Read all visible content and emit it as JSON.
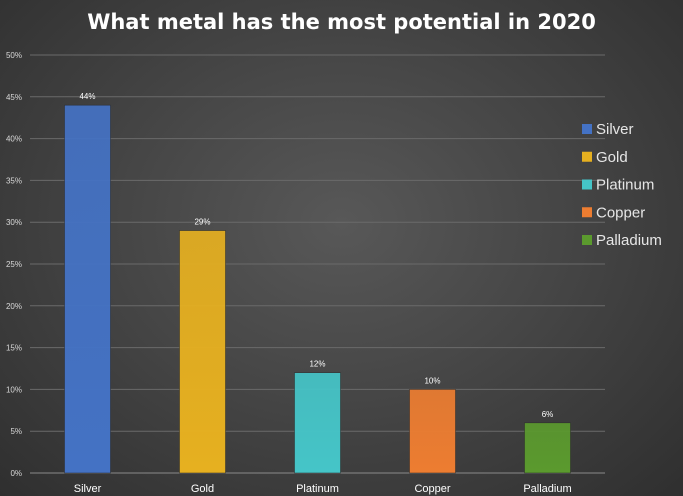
{
  "chart_data": {
    "type": "bar",
    "title": "What metal has the most potential in 2020",
    "categories": [
      "Silver",
      "Gold",
      "Platinum",
      "Copper",
      "Palladium"
    ],
    "values": [
      44,
      29,
      12,
      10,
      6
    ],
    "value_labels": [
      "44%",
      "29%",
      "12%",
      "10%",
      "6%"
    ],
    "colors": [
      "#4472c4",
      "#e6b020",
      "#45c5c8",
      "#ed7d31",
      "#5b9a2e"
    ],
    "ylim": [
      0,
      50
    ],
    "yticks": [
      0,
      5,
      10,
      15,
      20,
      25,
      30,
      35,
      40,
      45,
      50
    ],
    "ytick_labels": [
      "0%",
      "5%",
      "10%",
      "15%",
      "20%",
      "25%",
      "30%",
      "35%",
      "40%",
      "45%",
      "50%"
    ],
    "xlabel": "",
    "ylabel": "",
    "grid": true,
    "legend": {
      "position": "right",
      "entries": [
        "Silver",
        "Gold",
        "Platinum",
        "Copper",
        "Palladium"
      ]
    }
  }
}
